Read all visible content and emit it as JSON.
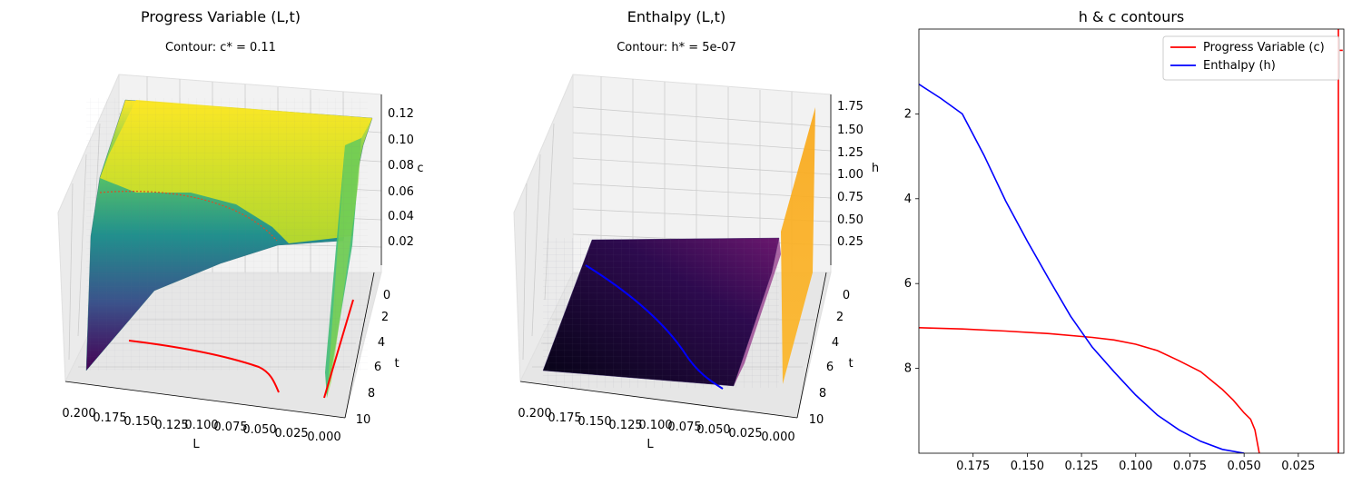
{
  "chart_data": [
    {
      "type": "surface3d",
      "title": "Progress Variable (L,t)",
      "subtitle": "Contour: c* = 0.11",
      "xlabel": "L",
      "ylabel": "t",
      "zlabel": "c",
      "xlim": [
        0.2,
        0.0
      ],
      "ylim": [
        0,
        10
      ],
      "zlim": [
        0,
        0.13
      ],
      "x_ticks": [
        "0.200",
        "0.175",
        "0.150",
        "0.125",
        "0.100",
        "0.075",
        "0.050",
        "0.025",
        "0.000"
      ],
      "y_ticks": [
        "0",
        "2",
        "4",
        "6",
        "8",
        "10"
      ],
      "z_ticks": [
        "0.02",
        "0.04",
        "0.06",
        "0.08",
        "0.10",
        "0.12"
      ],
      "colormap": "viridis",
      "contour_color": "#ff0000",
      "grid": true
    },
    {
      "type": "surface3d",
      "title": "Enthalpy (L,t)",
      "subtitle": "Contour: h* = 5e-07",
      "xlabel": "L",
      "ylabel": "t",
      "zlabel": "h",
      "xlim": [
        0.2,
        0.0
      ],
      "ylim": [
        0,
        10
      ],
      "zlim": [
        0,
        1.85
      ],
      "x_ticks": [
        "0.200",
        "0.175",
        "0.150",
        "0.125",
        "0.100",
        "0.075",
        "0.050",
        "0.025",
        "0.000"
      ],
      "y_ticks": [
        "0",
        "2",
        "4",
        "6",
        "8",
        "10"
      ],
      "z_ticks": [
        "0.25",
        "0.50",
        "0.75",
        "1.00",
        "1.25",
        "1.50",
        "1.75"
      ],
      "colormap": "inferno",
      "contour_color": "#0000ff",
      "grid": true
    },
    {
      "type": "line",
      "title": "h & c contours",
      "xlim": [
        0.2,
        0.004
      ],
      "ylim": [
        10,
        0
      ],
      "x_ticks": [
        0.175,
        0.15,
        0.125,
        0.1,
        0.075,
        0.05,
        0.025
      ],
      "x_tick_labels": [
        "0.175",
        "0.150",
        "0.125",
        "0.100",
        "0.075",
        "0.050",
        "0.025"
      ],
      "y_ticks": [
        2,
        4,
        6,
        8
      ],
      "y_tick_labels": [
        "2",
        "4",
        "6",
        "8"
      ],
      "legend_position": "top-right",
      "grid": false,
      "series": [
        {
          "name": "Progress Variable (c)",
          "color": "#ff0000",
          "x": [
            0.2,
            0.18,
            0.16,
            0.14,
            0.12,
            0.11,
            0.1,
            0.09,
            0.08,
            0.07,
            0.06,
            0.055,
            0.05,
            0.047,
            0.045,
            0.043
          ],
          "y": [
            7.04,
            7.07,
            7.12,
            7.18,
            7.27,
            7.33,
            7.43,
            7.58,
            7.82,
            8.08,
            8.5,
            8.75,
            9.05,
            9.2,
            9.45,
            10.0
          ]
        },
        {
          "name": "",
          "color": "#ff0000",
          "x": [
            0.0065,
            0.0065
          ],
          "y": [
            10.0,
            0.0
          ]
        },
        {
          "name": "",
          "color": "#ff0000",
          "x": [
            0.0065,
            0.0045
          ],
          "y": [
            0.5,
            0.5
          ]
        },
        {
          "name": "Enthalpy (h)",
          "color": "#0000ff",
          "x": [
            0.2,
            0.19,
            0.18,
            0.17,
            0.16,
            0.15,
            0.14,
            0.13,
            0.12,
            0.11,
            0.1,
            0.09,
            0.08,
            0.07,
            0.06,
            0.05
          ],
          "y": [
            1.3,
            1.63,
            2.0,
            2.97,
            4.05,
            5.0,
            5.9,
            6.77,
            7.5,
            8.08,
            8.63,
            9.1,
            9.45,
            9.72,
            9.91,
            10.0
          ]
        }
      ]
    }
  ]
}
